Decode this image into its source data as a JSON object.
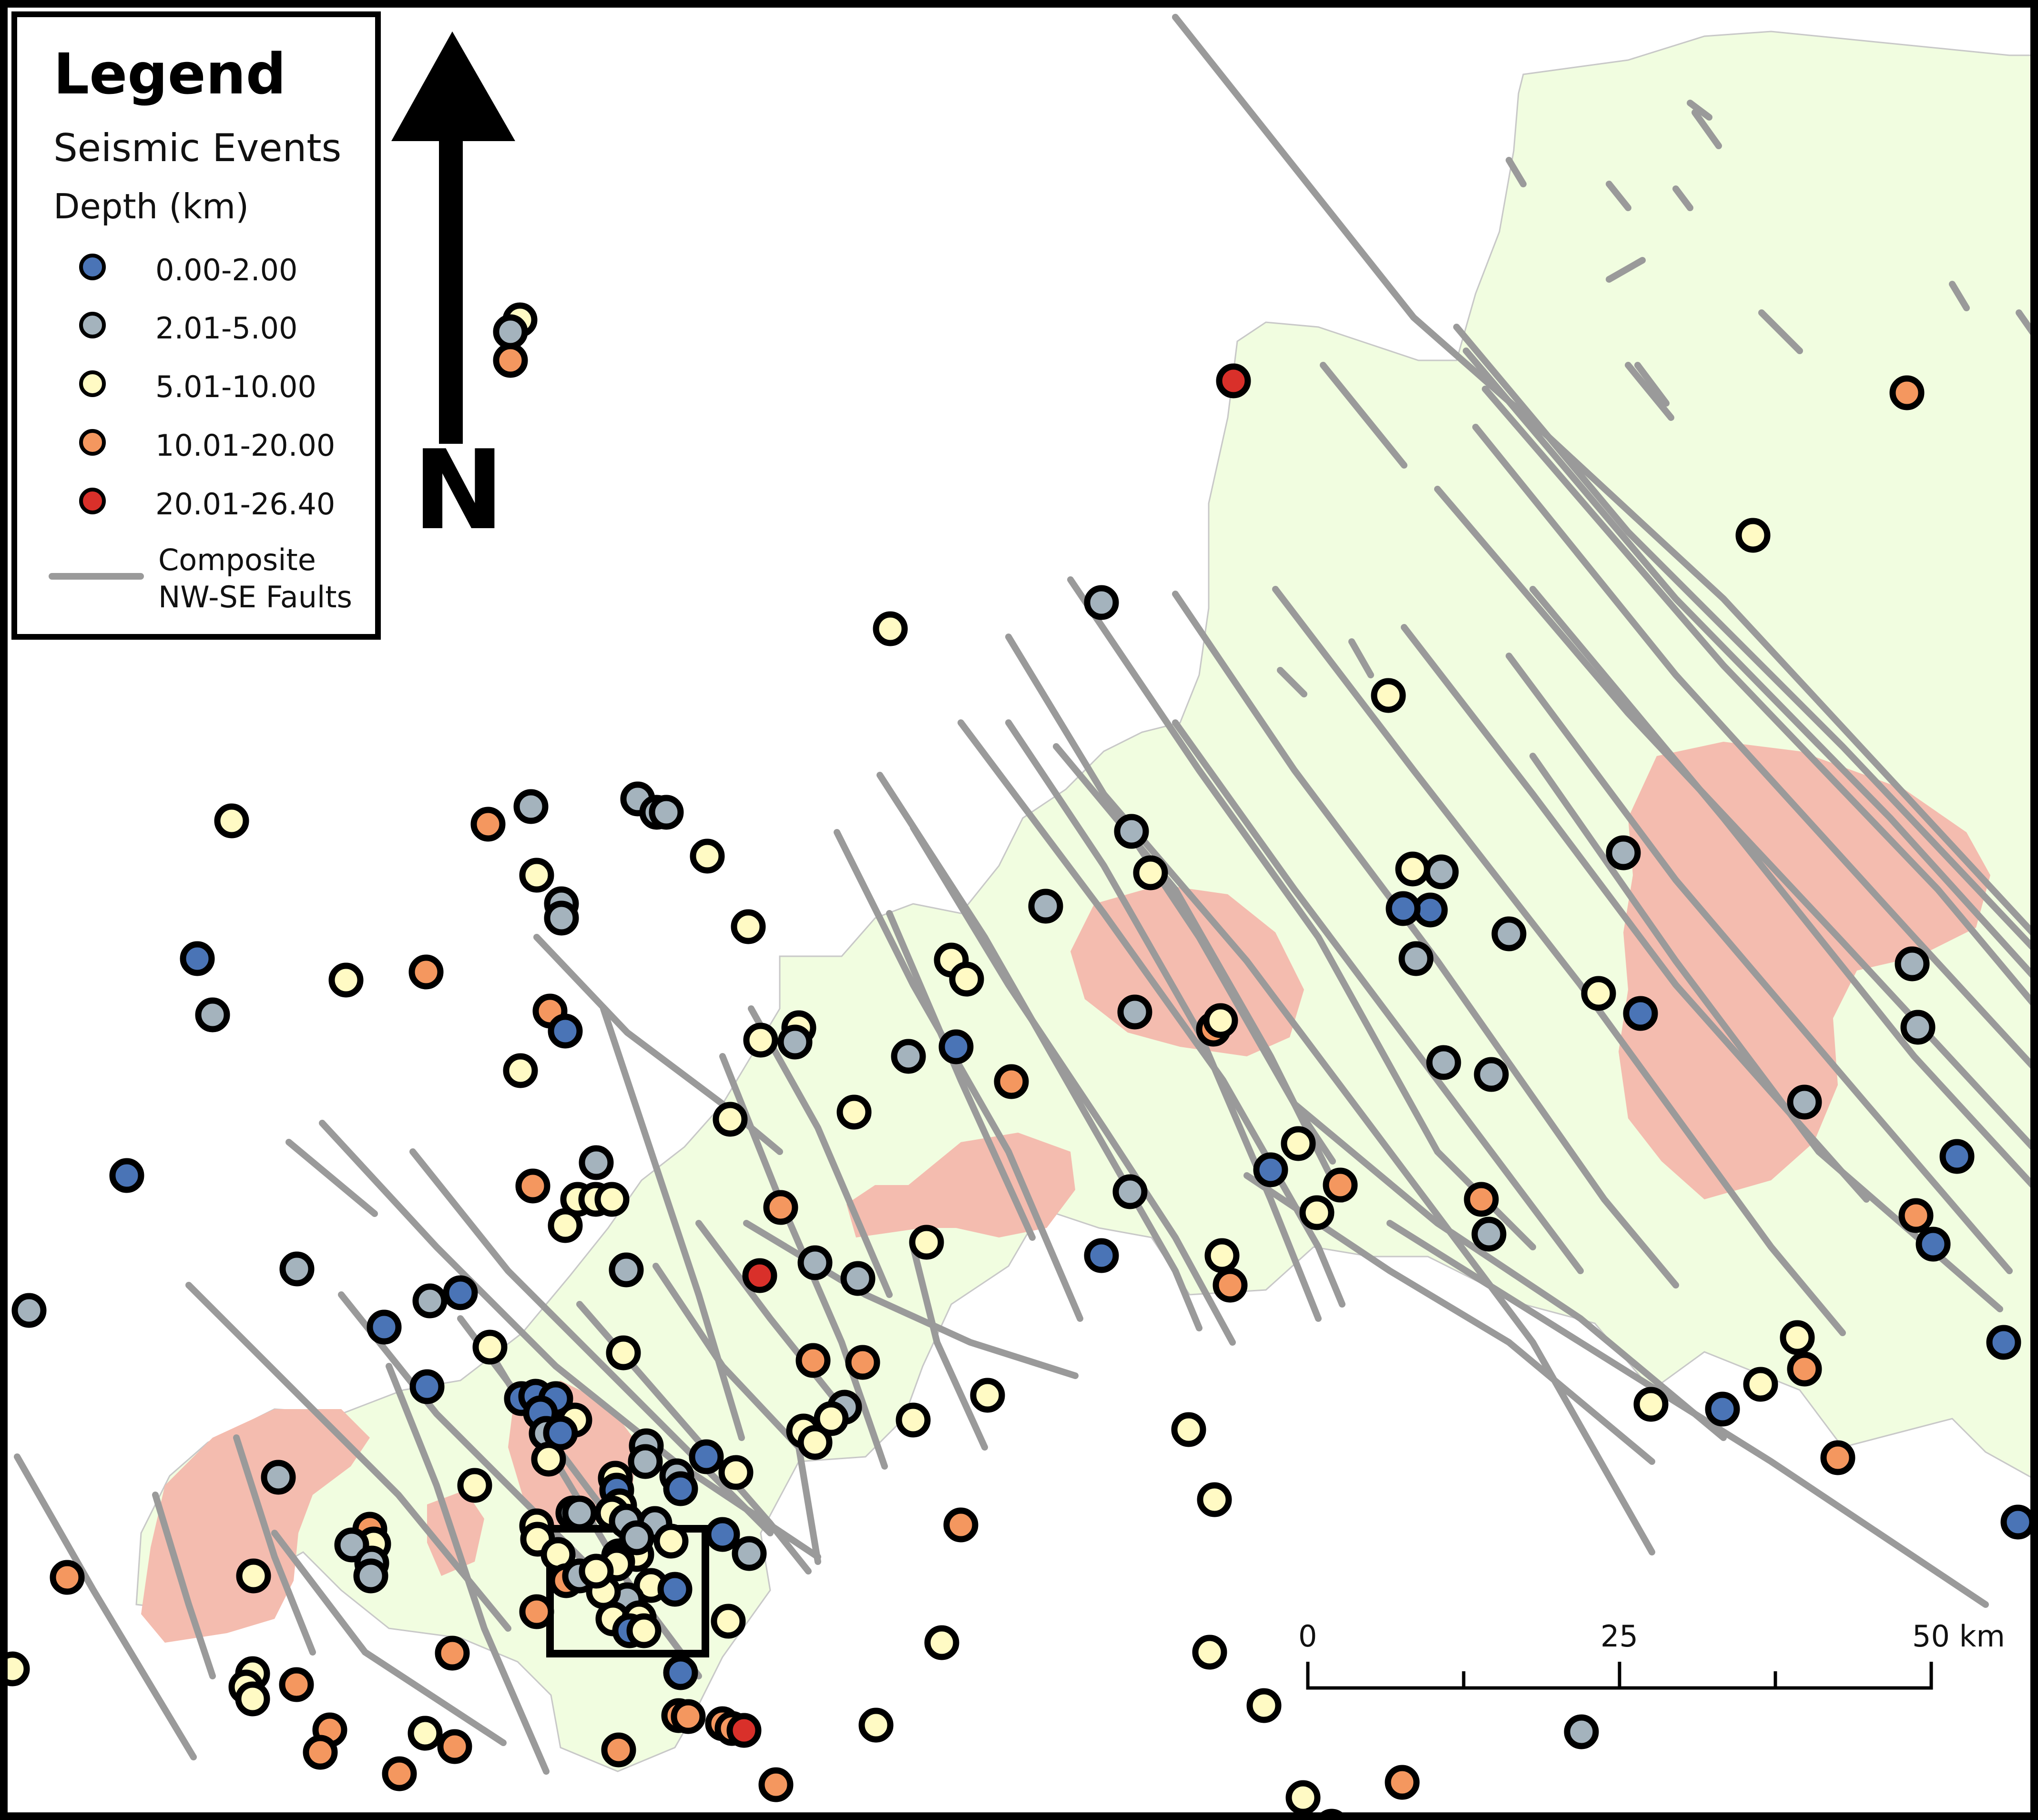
{
  "legend": {
    "title": "Legend",
    "subtitle": "Seismic Events",
    "depth_label": "Depth (km)",
    "classes": [
      {
        "label": "0.00-2.00",
        "color": "#4a74b6"
      },
      {
        "label": "2.01-5.00",
        "color": "#a4b3bd"
      },
      {
        "label": "5.01-10.00",
        "color": "#fffac4"
      },
      {
        "label": "10.01-20.00",
        "color": "#f4975f"
      },
      {
        "label": "20.01-26.40",
        "color": "#d9302a"
      }
    ],
    "fault_label_line1": "Composite",
    "fault_label_line2": "NW-SE Faults",
    "fault_color": "#9a9a9a"
  },
  "north_arrow": {
    "letter": "N"
  },
  "scale_bar": {
    "labels": [
      "0",
      "25",
      "50 km"
    ]
  },
  "colors": {
    "land": "#f1fde0",
    "granite": "#f4bcaf",
    "sea": "#ffffff",
    "fault": "#9a9a9a"
  }
}
